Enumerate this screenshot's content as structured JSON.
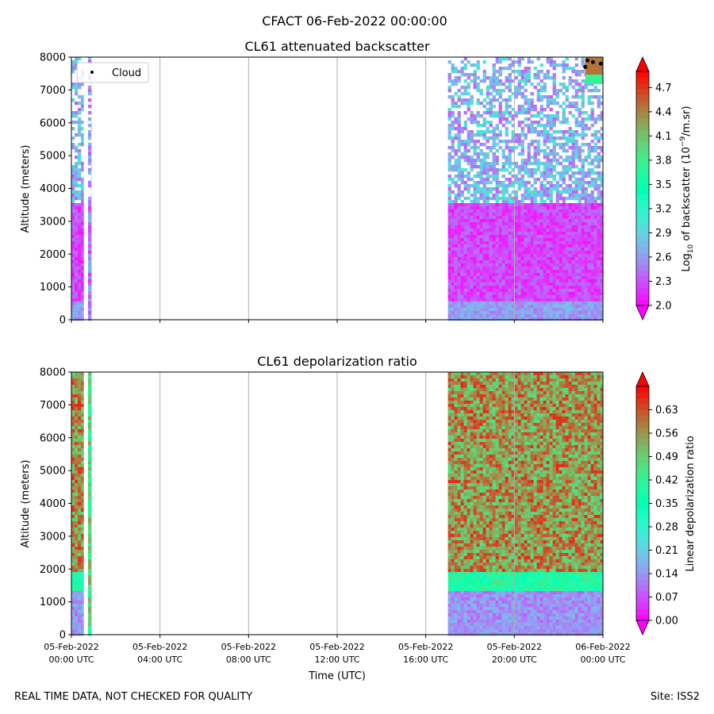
{
  "figure": {
    "suptitle": "CFACT 06-Feb-2022 00:00:00",
    "footer_left": "REAL TIME DATA, NOT CHECKED FOR QUALITY",
    "footer_right": "Site: ISS2"
  },
  "chart_data": [
    {
      "type": "heatmap",
      "title": "CL61 attenuated backscatter",
      "ylabel": "Altitude (meters)",
      "xlabel": "",
      "x_hours": [
        0,
        24
      ],
      "ylim": [
        0,
        8000
      ],
      "yticks": [
        0,
        1000,
        2000,
        3000,
        4000,
        5000,
        6000,
        7000,
        8000
      ],
      "data_segments_hours": [
        [
          0,
          0.55
        ],
        [
          0.75,
          0.9
        ],
        [
          17.0,
          24.0
        ]
      ],
      "colorbar": {
        "label_prefix": "Log",
        "label_sub": "10",
        "label_mid": " of backscatter (10",
        "label_sup": "−9",
        "label_suffix": "/m.sr)",
        "range": [
          2.0,
          4.9
        ],
        "ticks": [
          "2.0",
          "2.3",
          "2.6",
          "2.9",
          "3.2",
          "3.5",
          "3.8",
          "4.1",
          "4.4",
          "4.7"
        ],
        "colormap": "rainbow"
      },
      "legend": {
        "position": "top-left",
        "entries": [
          "Cloud"
        ]
      },
      "cloud_markers": [
        {
          "hour": 23.3,
          "alt": 7900
        },
        {
          "hour": 23.55,
          "alt": 7850
        },
        {
          "hour": 23.9,
          "alt": 7800
        },
        {
          "hour": 23.2,
          "alt": 7700
        }
      ]
    },
    {
      "type": "heatmap",
      "title": "CL61 depolarization ratio",
      "ylabel": "Altitude (meters)",
      "xlabel": "Time (UTC)",
      "x_hours": [
        0,
        24
      ],
      "ylim": [
        0,
        8000
      ],
      "yticks": [
        0,
        1000,
        2000,
        3000,
        4000,
        5000,
        6000,
        7000,
        8000
      ],
      "data_segments_hours": [
        [
          0,
          0.55
        ],
        [
          0.75,
          0.9
        ],
        [
          17.0,
          24.0
        ]
      ],
      "colorbar": {
        "label": "Linear depolarization ratio",
        "range": [
          0.0,
          0.7
        ],
        "ticks": [
          "0.00",
          "0.07",
          "0.14",
          "0.21",
          "0.28",
          "0.35",
          "0.42",
          "0.49",
          "0.56",
          "0.63"
        ],
        "colormap": "rainbow"
      }
    }
  ],
  "xticks": [
    {
      "hour": 0,
      "date": "05-Feb-2022",
      "time": "00:00 UTC"
    },
    {
      "hour": 4,
      "date": "05-Feb-2022",
      "time": "04:00 UTC"
    },
    {
      "hour": 8,
      "date": "05-Feb-2022",
      "time": "08:00 UTC"
    },
    {
      "hour": 12,
      "date": "05-Feb-2022",
      "time": "12:00 UTC"
    },
    {
      "hour": 16,
      "date": "05-Feb-2022",
      "time": "16:00 UTC"
    },
    {
      "hour": 20,
      "date": "05-Feb-2022",
      "time": "20:00 UTC"
    },
    {
      "hour": 24,
      "date": "06-Feb-2022",
      "time": "00:00 UTC"
    }
  ]
}
